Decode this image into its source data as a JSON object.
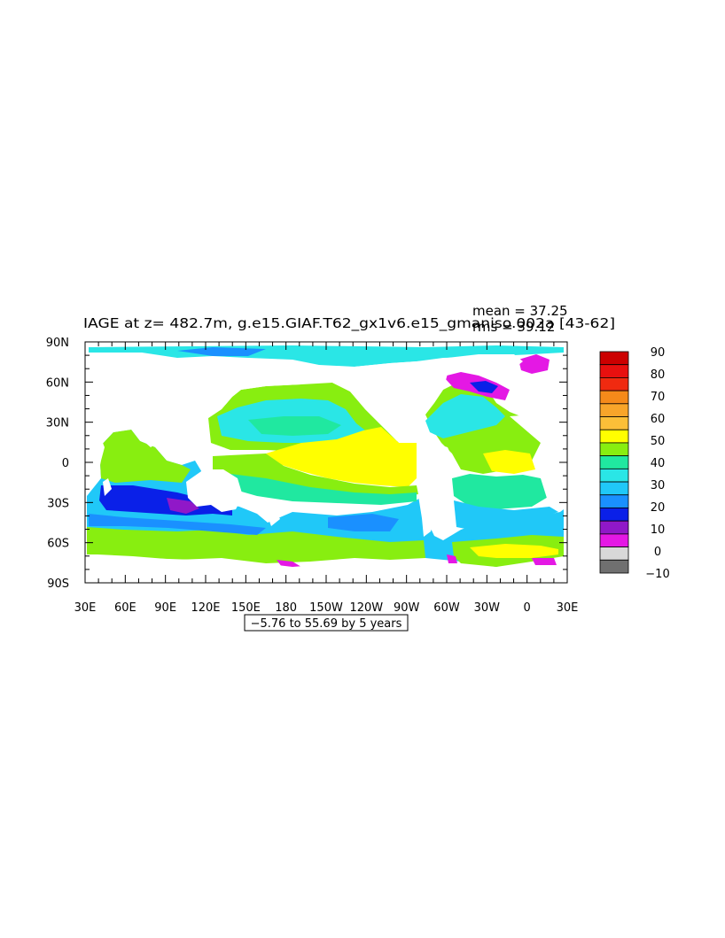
{
  "figure": {
    "title": "IAGE at z= 482.7m, g.e15.GIAF.T62_gx1v6.e15_gmaniso.002a [43-62]",
    "mean_text": "mean = 37.25",
    "rms_text": "rms = 39.12",
    "contour_info": "−5.76 to 55.69 by 5 years"
  },
  "axes": {
    "x_labels": [
      "30E",
      "60E",
      "90E",
      "120E",
      "150E",
      "180",
      "150W",
      "120W",
      "90W",
      "60W",
      "30W",
      "0",
      "30E"
    ],
    "y_labels": [
      "90N",
      "60N",
      "30N",
      "0",
      "30S",
      "60S",
      "90S"
    ],
    "lon_range": [
      30,
      390
    ],
    "lat_range": [
      -90,
      90
    ]
  },
  "colorbar": {
    "labels": [
      "90",
      "80",
      "70",
      "60",
      "50",
      "40",
      "30",
      "20",
      "10",
      "0",
      "−10"
    ],
    "colors": [
      "#cc0000",
      "#e8100f",
      "#f02a10",
      "#f58a1a",
      "#f8a52a",
      "#fbbf38",
      "#ffff00",
      "#88ee10",
      "#20e8a0",
      "#2ae6e6",
      "#20c8f8",
      "#1a90ff",
      "#0a20e8",
      "#9018c8",
      "#e418e4",
      "#d8d8d8",
      "#707070"
    ]
  },
  "chart_data": {
    "type": "heatmap",
    "title": "IAGE at z= 482.7m, g.e15.GIAF.T62_gx1v6.e15_gmaniso.002a [43-62]",
    "field": "IAGE",
    "depth": "482.7m",
    "units": "years",
    "mean": 37.25,
    "rms": 39.12,
    "contour_min": -5.76,
    "contour_max": 55.69,
    "contour_interval": 5,
    "xlim": [
      30,
      390
    ],
    "ylim": [
      -90,
      90
    ],
    "levels": [
      -10,
      0,
      10,
      20,
      30,
      40,
      50,
      60,
      70,
      80,
      90
    ]
  }
}
